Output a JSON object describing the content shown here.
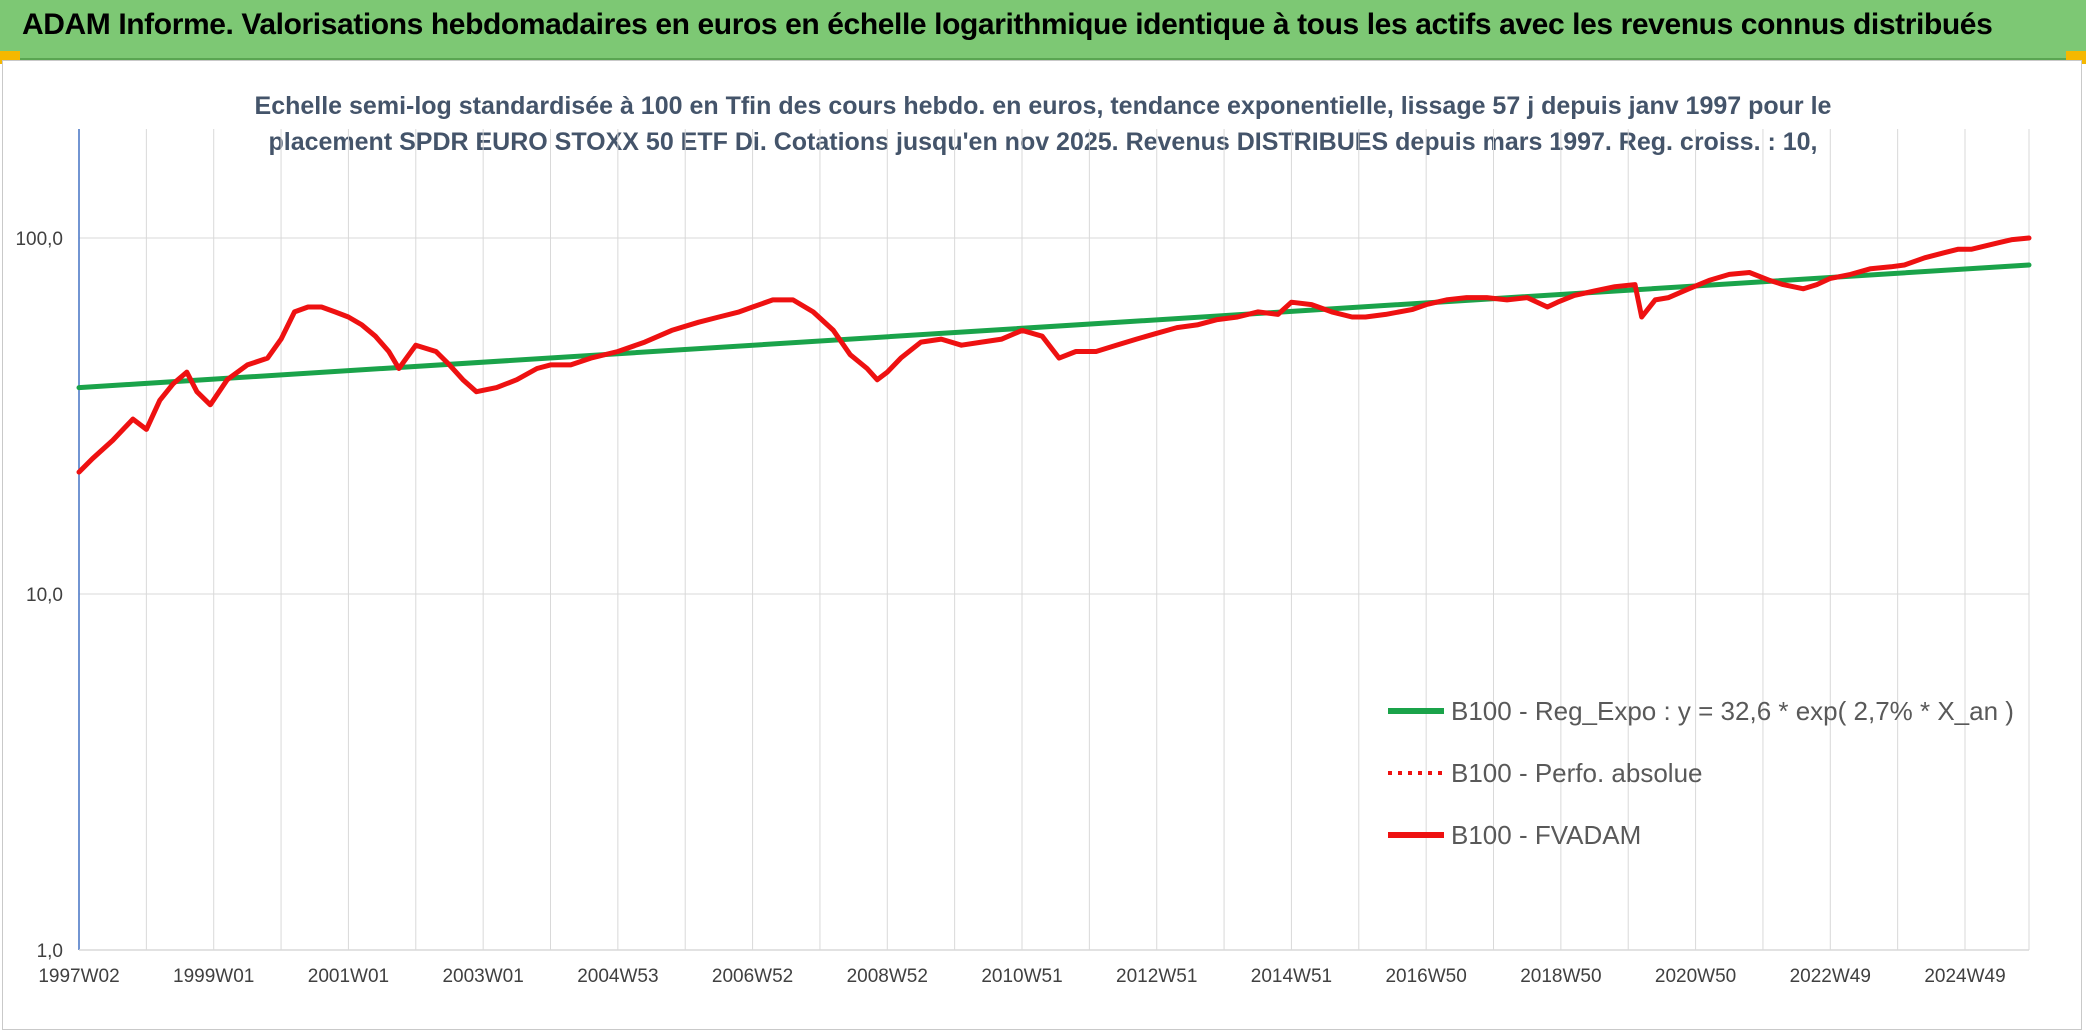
{
  "header": {
    "title": "ADAM Informe. Valorisations hebdomadaires en euros en échelle logarithmique identique à tous les actifs avec les revenus connus distribués"
  },
  "colors": {
    "header_bg": "#7dc874",
    "corner_accent": "#f5b800",
    "trend_line": "#1aa34a",
    "price_line": "#ee1111",
    "grid": "#d9d9d9",
    "axis": "#4472c4"
  },
  "chart_data": {
    "type": "line",
    "subtitle_lines": [
      "Echelle semi-log standardisée à 100 en Tfin des cours hebdo. en euros, tendance exponentielle, lissage 57 j depuis janv 1997 pour le",
      "placement SPDR EURO STOXX 50 ETF Di. Cotations jusqu'en nov 2025. Revenus DISTRIBUES depuis mars 1997. Reg. croiss. : 10,"
    ],
    "y_scale": "log",
    "ylim": [
      1,
      200
    ],
    "y_ticks": [
      {
        "value": 1,
        "label": "1,0"
      },
      {
        "value": 10,
        "label": "10,0"
      },
      {
        "value": 100,
        "label": "100,0"
      }
    ],
    "xlim": [
      1997.0,
      2025.95
    ],
    "x_ticks": [
      {
        "value": 1997.0,
        "label": "1997W02"
      },
      {
        "value": 1999.0,
        "label": "1999W01"
      },
      {
        "value": 2001.0,
        "label": "2001W01"
      },
      {
        "value": 2003.0,
        "label": "2003W01"
      },
      {
        "value": 2005.0,
        "label": "2004W53"
      },
      {
        "value": 2007.0,
        "label": "2006W52"
      },
      {
        "value": 2009.0,
        "label": "2008W52"
      },
      {
        "value": 2011.0,
        "label": "2010W51"
      },
      {
        "value": 2013.0,
        "label": "2012W51"
      },
      {
        "value": 2015.0,
        "label": "2014W51"
      },
      {
        "value": 2017.0,
        "label": "2016W50"
      },
      {
        "value": 2019.0,
        "label": "2018W50"
      },
      {
        "value": 2021.0,
        "label": "2020W50"
      },
      {
        "value": 2023.0,
        "label": "2022W49"
      },
      {
        "value": 2025.0,
        "label": "2024W49"
      }
    ],
    "grid": true,
    "legend_position": "bottom-right",
    "series": [
      {
        "name": "B100 - Reg_Expo : y = 32,6 * exp( 2,7% *  X_an )",
        "style": "solid-thick",
        "color": "#1aa34a",
        "x": [
          1997.0,
          2025.95
        ],
        "y": [
          38,
          84
        ]
      },
      {
        "name": "B100 - Perfo. absolue",
        "style": "dotted",
        "color": "#ee1111",
        "x": [],
        "y": []
      },
      {
        "name": "B100 - FVADAM",
        "style": "solid-thick",
        "color": "#ee1111",
        "x": [
          1997.0,
          1997.2,
          1997.5,
          1997.8,
          1998.0,
          1998.2,
          1998.4,
          1998.6,
          1998.75,
          1998.95,
          1999.2,
          1999.5,
          1999.8,
          2000.0,
          2000.2,
          2000.4,
          2000.6,
          2000.8,
          2001.0,
          2001.2,
          2001.4,
          2001.6,
          2001.75,
          2002.0,
          2002.3,
          2002.5,
          2002.7,
          2002.9,
          2003.2,
          2003.5,
          2003.8,
          2004.0,
          2004.3,
          2004.6,
          2005.0,
          2005.4,
          2005.8,
          2006.2,
          2006.5,
          2006.8,
          2007.0,
          2007.3,
          2007.6,
          2007.9,
          2008.2,
          2008.45,
          2008.7,
          2008.85,
          2009.0,
          2009.2,
          2009.5,
          2009.8,
          2010.1,
          2010.4,
          2010.7,
          2011.0,
          2011.3,
          2011.55,
          2011.8,
          2012.1,
          2012.4,
          2012.7,
          2013.0,
          2013.3,
          2013.6,
          2013.9,
          2014.2,
          2014.5,
          2014.8,
          2015.0,
          2015.3,
          2015.6,
          2015.9,
          2016.1,
          2016.4,
          2016.8,
          2017.0,
          2017.3,
          2017.6,
          2017.9,
          2018.2,
          2018.5,
          2018.8,
          2018.95,
          2019.2,
          2019.5,
          2019.8,
          2020.1,
          2020.2,
          2020.4,
          2020.6,
          2020.9,
          2021.2,
          2021.5,
          2021.8,
          2022.1,
          2022.3,
          2022.6,
          2022.8,
          2023.0,
          2023.3,
          2023.6,
          2023.9,
          2024.1,
          2024.4,
          2024.7,
          2024.9,
          2025.1,
          2025.3,
          2025.5,
          2025.7,
          2025.95
        ],
        "y": [
          22,
          24,
          27,
          31,
          29,
          35,
          39,
          42,
          37,
          34,
          40,
          44,
          46,
          52,
          62,
          64,
          64,
          62,
          60,
          57,
          53,
          48,
          43,
          50,
          48,
          44,
          40,
          37,
          38,
          40,
          43,
          44,
          44,
          46,
          48,
          51,
          55,
          58,
          60,
          62,
          64,
          67,
          67,
          62,
          55,
          47,
          43,
          40,
          42,
          46,
          51,
          52,
          50,
          51,
          52,
          55,
          53,
          46,
          48,
          48,
          50,
          52,
          54,
          56,
          57,
          59,
          60,
          62,
          61,
          66,
          65,
          62,
          60,
          60,
          61,
          63,
          65,
          67,
          68,
          68,
          67,
          68,
          64,
          66,
          69,
          71,
          73,
          74,
          60,
          67,
          68,
          72,
          76,
          79,
          80,
          76,
          74,
          72,
          74,
          77,
          79,
          82,
          83,
          84,
          88,
          91,
          93,
          93,
          95,
          97,
          99,
          100
        ]
      }
    ]
  }
}
